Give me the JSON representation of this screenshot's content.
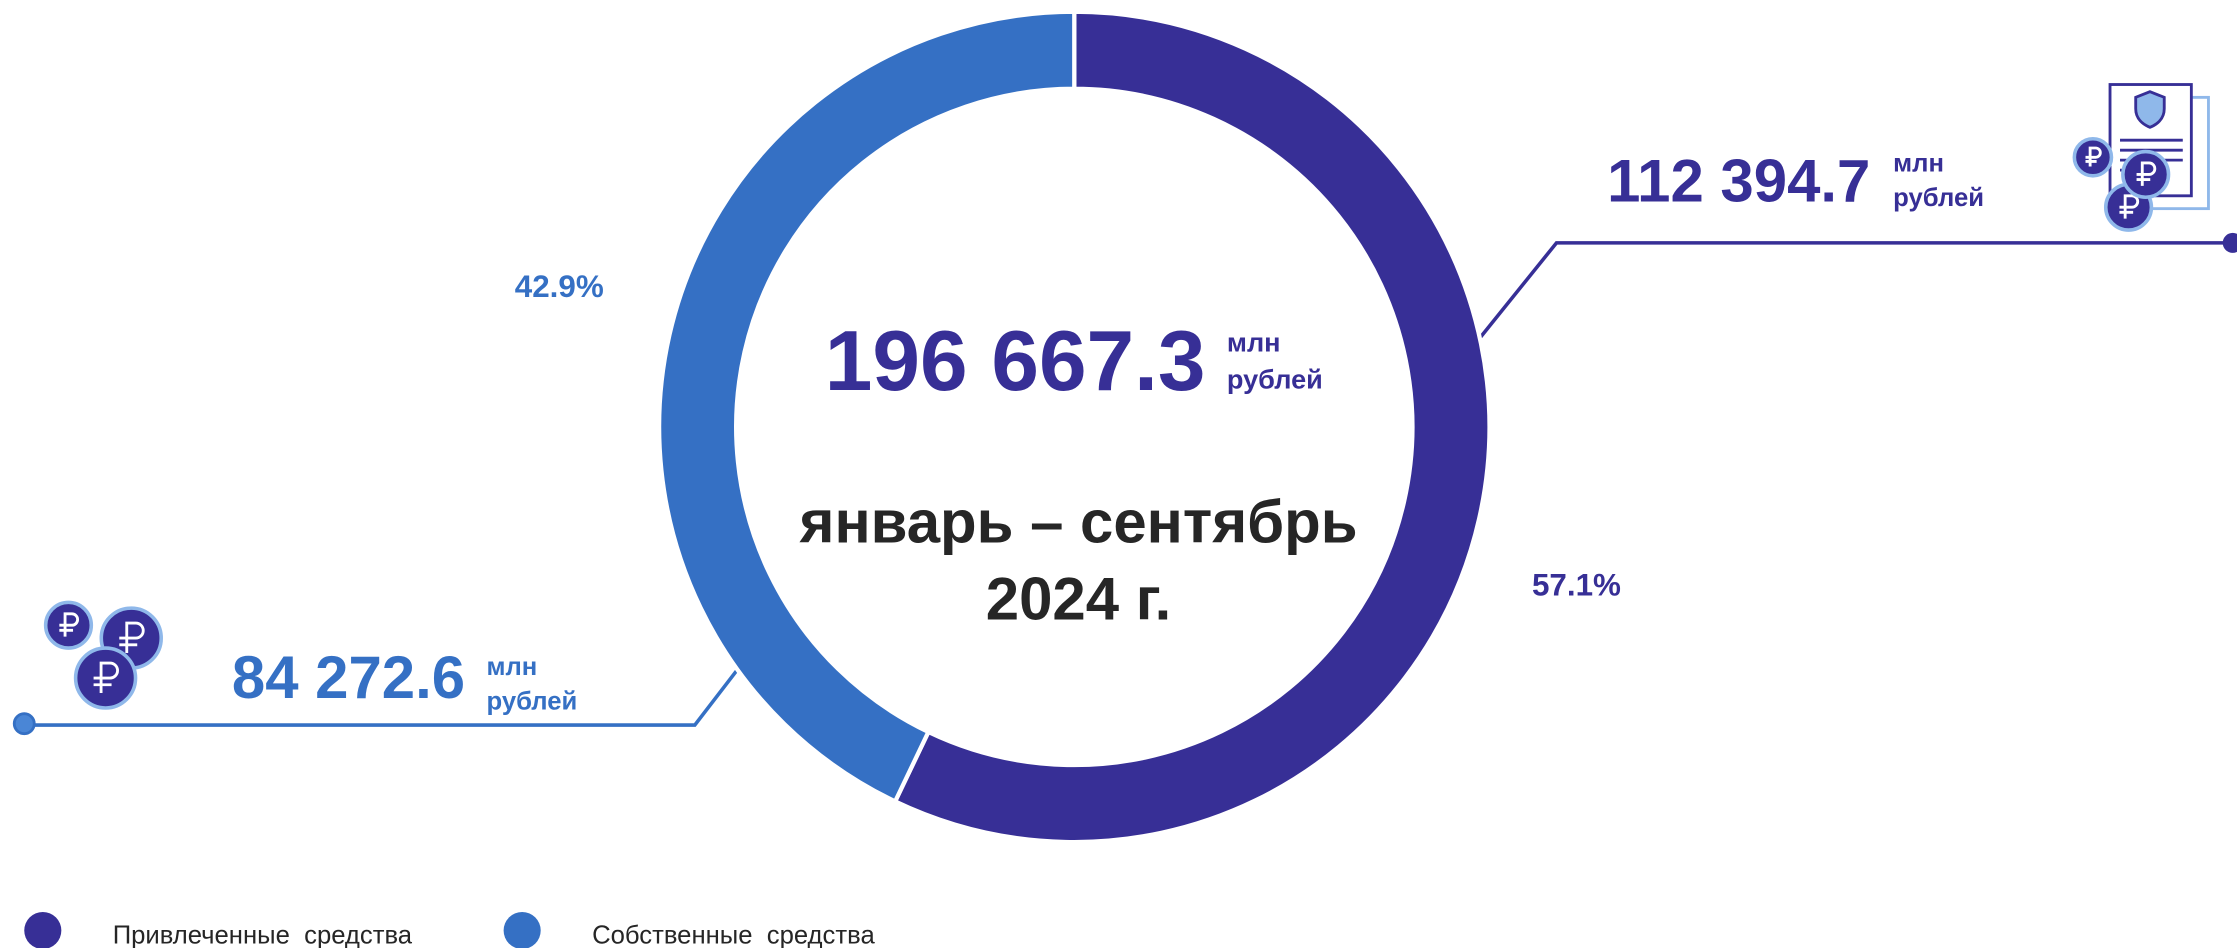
{
  "chart_data": {
    "type": "donut",
    "series": [
      {
        "name": "Привлеченные  средства",
        "color": "#372f96",
        "values": [
          57.1
        ],
        "value_labels": [
          "57.1%"
        ],
        "amount": "112 394.7"
      },
      {
        "name": "Собственные  средства",
        "color": "#3570c4",
        "values": [
          42.9
        ],
        "value_labels": [
          "42.9%"
        ],
        "amount": "84 272.6"
      }
    ],
    "unit_line1": "млн",
    "unit_line2": "рублей",
    "total": "196 667.3",
    "period_line1": "январь – сентябрь",
    "period_line2": "2024 г."
  }
}
